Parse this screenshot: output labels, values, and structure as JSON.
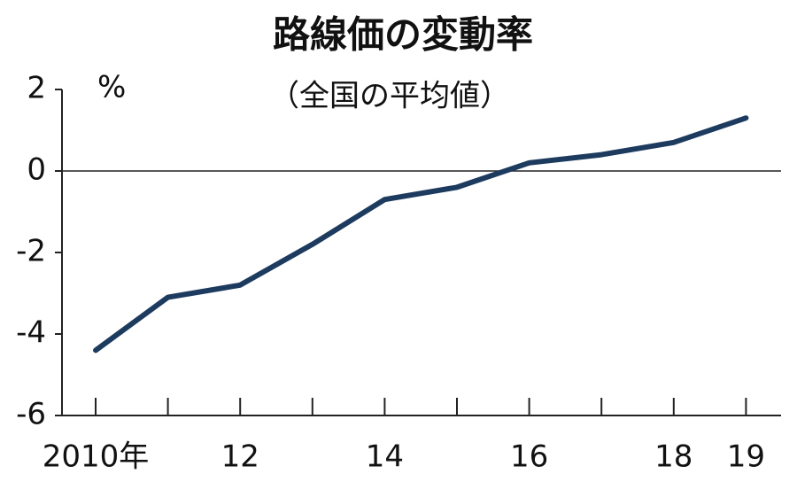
{
  "chart_data": {
    "type": "line",
    "title": "路線価の変動率",
    "subtitle": "（全国の平均値）",
    "y_unit": "%",
    "categories": [
      "2010年",
      null,
      "12",
      null,
      "14",
      null,
      "16",
      null,
      "18",
      "19"
    ],
    "series": [
      {
        "color": "#1d3b5f",
        "values": [
          -4.4,
          -3.1,
          -2.8,
          -1.8,
          -0.7,
          -0.4,
          0.2,
          0.4,
          0.7,
          1.3
        ]
      }
    ],
    "ylim": [
      -6,
      2
    ],
    "yticks": [
      2,
      0,
      -2,
      -4,
      -6
    ]
  }
}
